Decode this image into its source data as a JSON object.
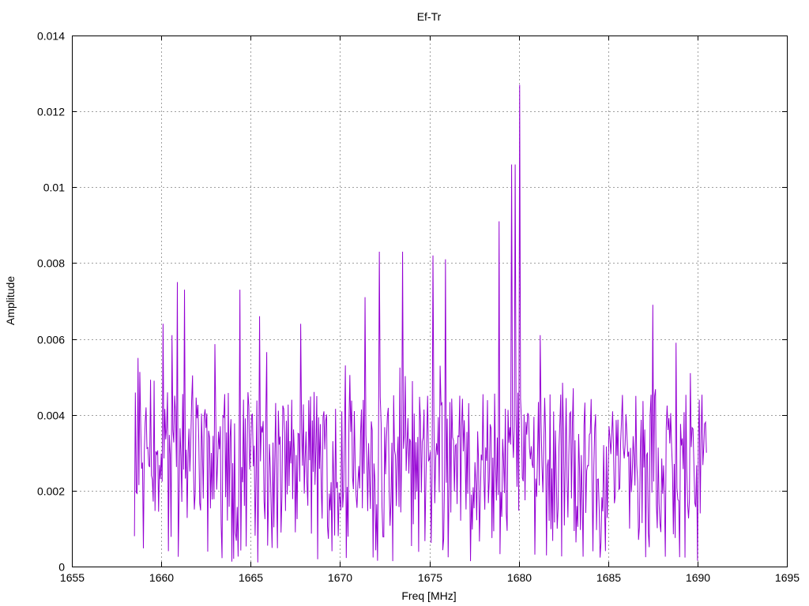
{
  "chart_data": {
    "type": "line",
    "title": "Ef-Tr",
    "xlabel": "Freq [MHz]",
    "ylabel": "Amplitude",
    "xlim": [
      1655,
      1695
    ],
    "ylim": [
      0,
      0.014
    ],
    "x_ticks": [
      "1655",
      "1660",
      "1665",
      "1670",
      "1675",
      "1680",
      "1685",
      "1690",
      "1695"
    ],
    "y_ticks": [
      "0",
      "0.002",
      "0.004",
      "0.006",
      "0.008",
      "0.01",
      "0.012",
      "0.014"
    ],
    "grid": true,
    "legend": "none",
    "series": [
      {
        "color": "#9400d3",
        "x_start": 1658.5,
        "x_end": 1690.5,
        "x_step": 0.05,
        "peaks": [
          {
            "x": 1658.7,
            "y": 0.0055
          },
          {
            "x": 1659.6,
            "y": 0.0049
          },
          {
            "x": 1660.1,
            "y": 0.0064
          },
          {
            "x": 1660.6,
            "y": 0.0061
          },
          {
            "x": 1660.9,
            "y": 0.0075
          },
          {
            "x": 1661.3,
            "y": 0.0073
          },
          {
            "x": 1664.4,
            "y": 0.0073
          },
          {
            "x": 1665.5,
            "y": 0.0066
          },
          {
            "x": 1667.8,
            "y": 0.0064
          },
          {
            "x": 1671.4,
            "y": 0.0071
          },
          {
            "x": 1672.2,
            "y": 0.0083
          },
          {
            "x": 1673.5,
            "y": 0.0083
          },
          {
            "x": 1675.2,
            "y": 0.0082
          },
          {
            "x": 1675.9,
            "y": 0.0081
          },
          {
            "x": 1678.9,
            "y": 0.0091
          },
          {
            "x": 1679.6,
            "y": 0.0106
          },
          {
            "x": 1679.8,
            "y": 0.0106
          },
          {
            "x": 1680.05,
            "y": 0.0127
          },
          {
            "x": 1681.2,
            "y": 0.0061
          },
          {
            "x": 1687.5,
            "y": 0.0069
          },
          {
            "x": 1688.8,
            "y": 0.0059
          },
          {
            "x": 1689.6,
            "y": 0.0051
          }
        ],
        "end_values": [
          {
            "x": 1658.5,
            "y": 0.0008
          },
          {
            "x": 1690.5,
            "y": 0.003
          }
        ],
        "baseline_mean": 0.003,
        "baseline_spread": 0.0016,
        "min_value": 0.0001,
        "max_value": 0.0127
      }
    ]
  }
}
